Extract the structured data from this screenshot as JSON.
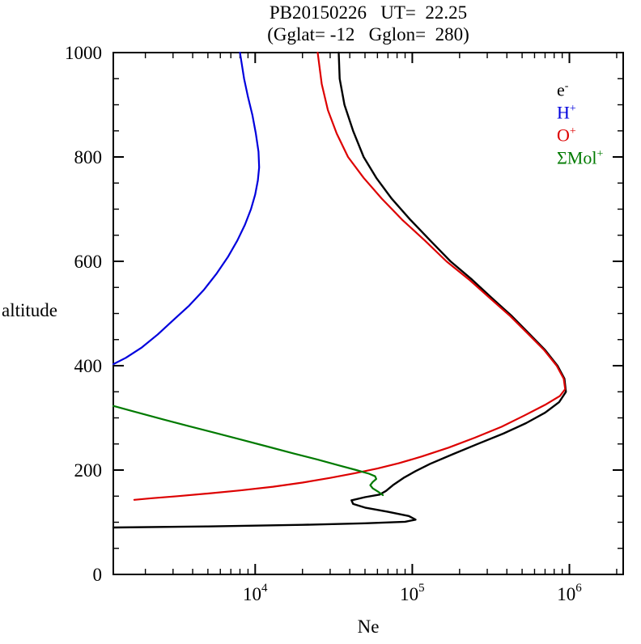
{
  "chart_data": {
    "type": "line",
    "title": "PB20150226   UT=  22.25",
    "subtitle": "(Gglat= -12   Gglon=  280)",
    "xlabel": "Ne",
    "ylabel": "altitude",
    "x_scale": "log",
    "y_scale": "linear",
    "xlim": [
      1250,
      2200000
    ],
    "ylim": [
      0,
      1000
    ],
    "x_major_ticks": [
      10000,
      100000,
      1000000
    ],
    "x_major_tick_exponents": [
      4,
      5,
      6
    ],
    "y_major_ticks": [
      0,
      200,
      400,
      600,
      800,
      1000
    ],
    "y_minor_step": 50,
    "grid": false,
    "legend_position": "upper-right",
    "frame_color": "#000000",
    "series": [
      {
        "name": "electron",
        "label_base": "e",
        "label_sup": "-",
        "color": "#000000",
        "width": 2.4,
        "points": [
          [
            1250,
            90
          ],
          [
            5000,
            92
          ],
          [
            20000,
            95
          ],
          [
            50000,
            98
          ],
          [
            90000,
            101
          ],
          [
            105000,
            105
          ],
          [
            95000,
            112
          ],
          [
            70000,
            120
          ],
          [
            50000,
            128
          ],
          [
            42000,
            135
          ],
          [
            41000,
            142
          ],
          [
            50000,
            148
          ],
          [
            62000,
            153
          ],
          [
            68000,
            160
          ],
          [
            76000,
            172
          ],
          [
            88000,
            185
          ],
          [
            105000,
            198
          ],
          [
            130000,
            212
          ],
          [
            180000,
            230
          ],
          [
            260000,
            250
          ],
          [
            380000,
            270
          ],
          [
            530000,
            290
          ],
          [
            700000,
            310
          ],
          [
            860000,
            330
          ],
          [
            950000,
            350
          ],
          [
            930000,
            375
          ],
          [
            840000,
            400
          ],
          [
            700000,
            430
          ],
          [
            560000,
            460
          ],
          [
            430000,
            495
          ],
          [
            320000,
            530
          ],
          [
            240000,
            565
          ],
          [
            175000,
            600
          ],
          [
            130000,
            640
          ],
          [
            97000,
            680
          ],
          [
            74000,
            720
          ],
          [
            59000,
            760
          ],
          [
            49000,
            800
          ],
          [
            42000,
            850
          ],
          [
            37000,
            900
          ],
          [
            34500,
            950
          ],
          [
            34000,
            1000
          ]
        ]
      },
      {
        "name": "hydrogen",
        "label_base": "H",
        "label_sup": "+",
        "color": "#0000dd",
        "width": 2.2,
        "points": [
          [
            1250,
            403
          ],
          [
            1500,
            415
          ],
          [
            1900,
            435
          ],
          [
            2400,
            460
          ],
          [
            3000,
            487
          ],
          [
            3800,
            515
          ],
          [
            4700,
            545
          ],
          [
            5700,
            577
          ],
          [
            6700,
            608
          ],
          [
            7700,
            640
          ],
          [
            8600,
            670
          ],
          [
            9400,
            700
          ],
          [
            10000,
            728
          ],
          [
            10400,
            755
          ],
          [
            10600,
            780
          ],
          [
            10500,
            810
          ],
          [
            10100,
            845
          ],
          [
            9600,
            880
          ],
          [
            9000,
            915
          ],
          [
            8500,
            950
          ],
          [
            8000,
            1000
          ]
        ]
      },
      {
        "name": "oxygen",
        "label_base": "O",
        "label_sup": "+",
        "color": "#dd0000",
        "width": 2.2,
        "points": [
          [
            1700,
            143
          ],
          [
            2200,
            146
          ],
          [
            3200,
            150
          ],
          [
            5000,
            155
          ],
          [
            8000,
            161
          ],
          [
            13000,
            168
          ],
          [
            20000,
            176
          ],
          [
            30000,
            185
          ],
          [
            43000,
            194
          ],
          [
            60000,
            203
          ],
          [
            82000,
            213
          ],
          [
            115000,
            226
          ],
          [
            170000,
            243
          ],
          [
            250000,
            262
          ],
          [
            370000,
            283
          ],
          [
            520000,
            305
          ],
          [
            700000,
            325
          ],
          [
            870000,
            342
          ],
          [
            940000,
            355
          ],
          [
            920000,
            375
          ],
          [
            830000,
            400
          ],
          [
            690000,
            430
          ],
          [
            550000,
            460
          ],
          [
            420000,
            495
          ],
          [
            310000,
            530
          ],
          [
            230000,
            565
          ],
          [
            165000,
            600
          ],
          [
            120000,
            640
          ],
          [
            86000,
            680
          ],
          [
            64000,
            720
          ],
          [
            49000,
            760
          ],
          [
            39000,
            800
          ],
          [
            33000,
            845
          ],
          [
            29000,
            890
          ],
          [
            26500,
            940
          ],
          [
            25000,
            1000
          ]
        ]
      },
      {
        "name": "molecular",
        "label_base": "ΣMol",
        "label_sup": "+",
        "color": "#007a00",
        "width": 2.2,
        "points": [
          [
            1250,
            323
          ],
          [
            1800,
            310
          ],
          [
            2600,
            297
          ],
          [
            3800,
            284
          ],
          [
            5600,
            271
          ],
          [
            8200,
            258
          ],
          [
            12000,
            245
          ],
          [
            17500,
            232
          ],
          [
            25000,
            220
          ],
          [
            34000,
            209
          ],
          [
            44000,
            200
          ],
          [
            53000,
            193
          ],
          [
            58000,
            188
          ],
          [
            59000,
            183
          ],
          [
            56000,
            177
          ],
          [
            54000,
            171
          ],
          [
            56000,
            165
          ],
          [
            61000,
            158
          ],
          [
            65000,
            152
          ]
        ]
      }
    ]
  }
}
